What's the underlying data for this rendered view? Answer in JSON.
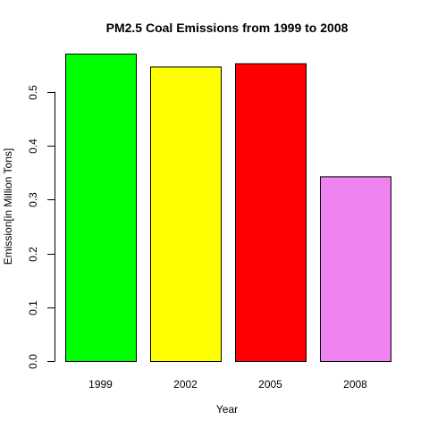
{
  "chart_data": {
    "type": "bar",
    "title": "PM2.5 Coal Emissions from 1999 to 2008",
    "xlabel": "Year",
    "ylabel": "Emission[in Million Tons]",
    "categories": [
      "1999",
      "2002",
      "2005",
      "2008"
    ],
    "values": [
      0.571,
      0.547,
      0.553,
      0.343
    ],
    "colors": [
      "#00ff00",
      "#ffff00",
      "#ff0000",
      "#ee82ee"
    ],
    "ylim": [
      0,
      0.571
    ],
    "yticks": [
      0.0,
      0.1,
      0.2,
      0.3,
      0.4,
      0.5
    ],
    "ytick_labels": [
      "0.0",
      "0.1",
      "0.2",
      "0.3",
      "0.4",
      "0.5"
    ],
    "grid": false,
    "legend": "none"
  }
}
